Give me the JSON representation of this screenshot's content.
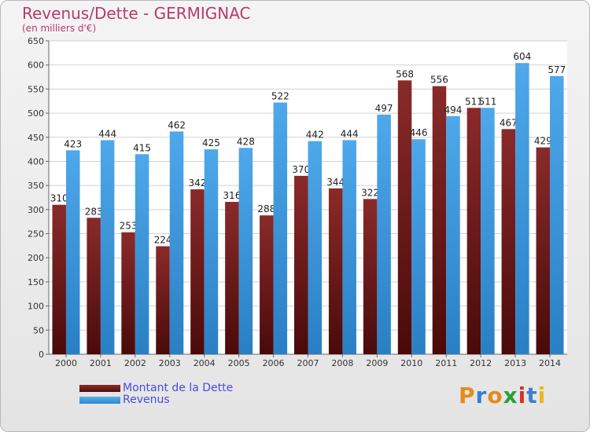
{
  "header": {
    "title": "Revenus/Dette - GERMIGNAC",
    "subtitle": "(en milliers d'€)"
  },
  "legend": {
    "items": [
      {
        "label": "Montant de la Dette",
        "color": "#7a1f1f"
      },
      {
        "label": "Revenus",
        "color": "#3d9be0"
      }
    ]
  },
  "logo": {
    "text": "Proxiti"
  },
  "chart_data": {
    "type": "bar",
    "categories": [
      "2000",
      "2001",
      "2002",
      "2003",
      "2004",
      "2005",
      "2006",
      "2007",
      "2008",
      "2009",
      "2010",
      "2011",
      "2012",
      "2013",
      "2014"
    ],
    "series": [
      {
        "name": "Montant de la Dette",
        "color": "#7a1f1f",
        "values": [
          310,
          283,
          253,
          224,
          342,
          316,
          288,
          370,
          344,
          322,
          568,
          556,
          511,
          467,
          429
        ]
      },
      {
        "name": "Revenus",
        "color": "#3d9be0",
        "values": [
          423,
          444,
          415,
          462,
          425,
          428,
          522,
          442,
          444,
          497,
          446,
          494,
          511,
          604,
          577
        ]
      }
    ],
    "ylim": [
      0,
      650
    ],
    "yticks": [
      0,
      50,
      100,
      150,
      200,
      250,
      300,
      350,
      400,
      450,
      500,
      550,
      600,
      650
    ],
    "grid": true
  }
}
